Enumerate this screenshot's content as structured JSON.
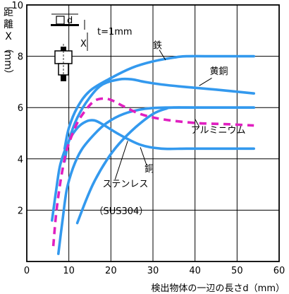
{
  "chart_data": {
    "type": "line",
    "xlabel": "検出物体の一辺の長さd（mm）",
    "ylabel_chars": [
      "距",
      "離",
      "X",
      "（",
      "mm",
      "）"
    ],
    "xlim": [
      0,
      60
    ],
    "ylim": [
      0,
      10
    ],
    "x_ticks": [
      0,
      10,
      20,
      30,
      40,
      50,
      60
    ],
    "y_ticks": [
      2,
      4,
      6,
      8,
      10
    ],
    "grid": true,
    "colors": {
      "curve": "#3399ee",
      "dashed": "#e020c0",
      "axis": "#000000"
    },
    "series": [
      {
        "name": "鉄",
        "dashed": false,
        "points": [
          [
            9,
            4.4
          ],
          [
            10,
            5.2
          ],
          [
            12,
            6.0
          ],
          [
            15,
            6.65
          ],
          [
            20,
            7.15
          ],
          [
            25,
            7.55
          ],
          [
            30,
            7.8
          ],
          [
            35,
            7.95
          ],
          [
            38,
            8.0
          ],
          [
            45,
            8.0
          ],
          [
            54,
            8.0
          ]
        ]
      },
      {
        "name": "黄銅",
        "dashed": false,
        "points": [
          [
            9,
            3.9
          ],
          [
            10,
            4.7
          ],
          [
            12,
            5.6
          ],
          [
            15,
            6.4
          ],
          [
            18,
            6.9
          ],
          [
            22,
            7.1
          ],
          [
            25,
            7.1
          ],
          [
            28,
            7.0
          ],
          [
            32,
            6.9
          ],
          [
            38,
            6.8
          ],
          [
            45,
            6.7
          ],
          [
            54,
            6.55
          ]
        ]
      },
      {
        "name": "銅",
        "dashed": false,
        "points": [
          [
            6,
            1.6
          ],
          [
            7,
            2.8
          ],
          [
            8,
            3.8
          ],
          [
            10,
            4.7
          ],
          [
            12,
            5.2
          ],
          [
            14,
            5.45
          ],
          [
            16,
            5.5
          ],
          [
            18,
            5.35
          ],
          [
            22,
            4.95
          ],
          [
            27,
            4.55
          ],
          [
            32,
            4.4
          ],
          [
            38,
            4.4
          ],
          [
            45,
            4.4
          ],
          [
            54,
            4.4
          ]
        ]
      },
      {
        "name": "アルミニウム",
        "dashed": false,
        "points": [
          [
            7.5,
            0.3
          ],
          [
            8.5,
            1.6
          ],
          [
            9.5,
            2.8
          ],
          [
            11,
            3.65
          ],
          [
            13,
            4.35
          ],
          [
            16,
            4.95
          ],
          [
            19,
            5.4
          ],
          [
            23,
            5.75
          ],
          [
            28,
            5.95
          ],
          [
            33,
            6.0
          ],
          [
            40,
            6.0
          ],
          [
            54,
            6.0
          ]
        ]
      },
      {
        "name": "ステンレス（SUS304）",
        "dashed": false,
        "points": [
          [
            12,
            1.5
          ],
          [
            14,
            2.35
          ],
          [
            16,
            3.1
          ],
          [
            19,
            3.95
          ],
          [
            22,
            4.6
          ],
          [
            26,
            5.25
          ],
          [
            30,
            5.75
          ],
          [
            33,
            5.95
          ],
          [
            35,
            6.0
          ],
          [
            45,
            6.0
          ],
          [
            54,
            6.0
          ]
        ]
      },
      {
        "name": "dashed",
        "dashed": true,
        "points": [
          [
            6.3,
            0.6
          ],
          [
            7,
            1.9
          ],
          [
            8,
            3.1
          ],
          [
            9,
            4.0
          ],
          [
            10,
            4.6
          ],
          [
            12,
            5.4
          ],
          [
            14,
            5.9
          ],
          [
            16,
            6.25
          ],
          [
            18,
            6.35
          ],
          [
            20,
            6.3
          ],
          [
            23,
            6.05
          ],
          [
            27,
            5.75
          ],
          [
            32,
            5.55
          ],
          [
            40,
            5.4
          ],
          [
            48,
            5.35
          ],
          [
            54,
            5.3
          ]
        ]
      }
    ],
    "annotations": [
      {
        "text": "鉄",
        "x": 30,
        "y": 8.3,
        "leader": [
          [
            31.5,
            8.25
          ],
          [
            33,
            7.85
          ]
        ]
      },
      {
        "text": "黄銅",
        "x": 43.5,
        "y": 7.3,
        "leader": [
          [
            44,
            7.15
          ],
          [
            41,
            6.85
          ]
        ]
      },
      {
        "text": "アルミニウム",
        "x": 39,
        "y": 5.0,
        "leader": [
          [
            41,
            5.25
          ],
          [
            40,
            5.55
          ]
        ]
      },
      {
        "text": "銅",
        "x": 28,
        "y": 3.5,
        "leader": [
          [
            28.5,
            3.75
          ],
          [
            27,
            4.45
          ]
        ]
      },
      {
        "text": "ステンレス",
        "x": 18,
        "y": 2.9,
        "leader": [
          [
            21,
            3.2
          ],
          [
            24,
            4.7
          ]
        ]
      },
      {
        "text": "（SUS304）",
        "x": 16,
        "y": 1.85,
        "leader": null
      }
    ],
    "inset": {
      "d_label": "d",
      "t_label": "t=1mm",
      "x_label": "X"
    }
  }
}
